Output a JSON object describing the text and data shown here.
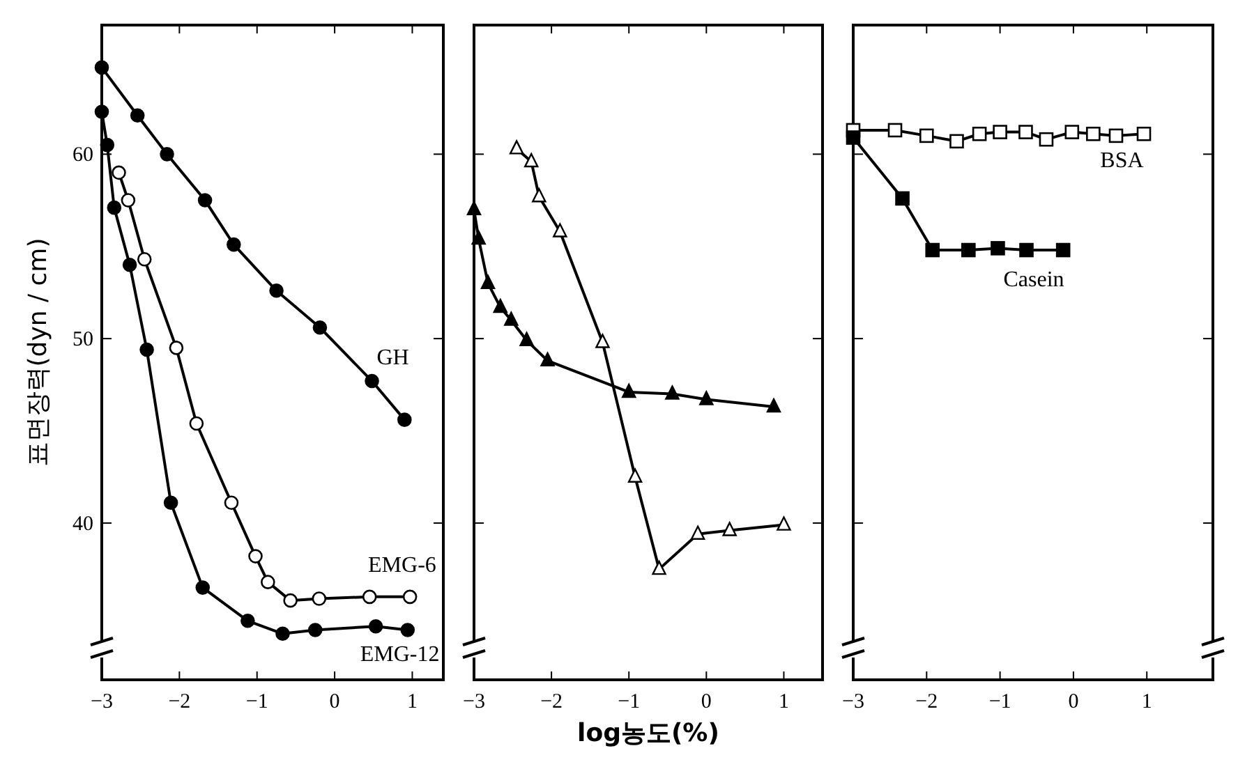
{
  "chart_data": [
    {
      "type": "line",
      "ylabel": "표면장력(dyn / cm)",
      "xlim": [
        -3,
        1.4
      ],
      "xticks": [
        -3,
        -2,
        -1,
        0,
        1
      ],
      "ylim": [
        31.5,
        67
      ],
      "yticks": [
        40,
        50,
        60
      ],
      "tick_labels": "xy",
      "grid": false,
      "series": [
        {
          "name": "GH",
          "color": "#000000",
          "marker": "circle",
          "x": [
            -3.0,
            -2.54,
            -2.16,
            -1.67,
            -1.3,
            -0.75,
            -0.19,
            0.48,
            0.9
          ],
          "values": [
            64.7,
            62.1,
            60.0,
            57.5,
            55.1,
            52.6,
            50.6,
            47.7,
            45.6
          ]
        },
        {
          "name": "EMG-6",
          "color": "#000000",
          "marker": "circle",
          "x": [
            -2.78,
            -2.66,
            -2.45,
            -2.04,
            -1.78,
            -1.33,
            -1.02,
            -0.86,
            -0.57,
            -0.2,
            0.45,
            0.97
          ],
          "values": [
            59.0,
            57.5,
            54.3,
            49.5,
            45.4,
            41.1,
            38.2,
            36.8,
            35.8,
            35.9,
            36.0,
            36.0
          ]
        },
        {
          "name": "EMG-12",
          "color": "#000000",
          "marker": "circle",
          "x": [
            -3.0,
            -2.93,
            -2.84,
            -2.64,
            -2.42,
            -2.11,
            -1.7,
            -1.12,
            -0.67,
            -0.25,
            0.53,
            0.94
          ],
          "values": [
            62.3,
            60.5,
            57.1,
            54.0,
            49.4,
            41.1,
            36.5,
            34.7,
            34.0,
            34.2,
            34.4,
            34.2
          ]
        }
      ]
    },
    {
      "type": "line",
      "xlabel": "log농도(%)",
      "xlim": [
        -3,
        1.5
      ],
      "xticks": [
        -3,
        -2,
        -1,
        0,
        1
      ],
      "ylim": [
        31.5,
        67
      ],
      "yticks": [
        40,
        50,
        60
      ],
      "tick_labels": "x",
      "grid": false,
      "series": [
        {
          "color": "#000000",
          "marker": "triangle",
          "x": [
            -3.0,
            -2.94,
            -2.82,
            -2.66,
            -2.52,
            -2.32,
            -2.05,
            -1.0,
            -0.44,
            0.0,
            0.87
          ],
          "values": [
            57.0,
            55.4,
            53.0,
            51.7,
            51.0,
            49.9,
            48.8,
            47.1,
            47.0,
            46.7,
            46.3
          ]
        },
        {
          "color": "#000000",
          "marker": "triangle",
          "x": [
            -2.45,
            -2.26,
            -2.16,
            -1.89,
            -1.34,
            -0.92,
            -0.61,
            -0.11,
            0.3,
            1.0
          ],
          "values": [
            60.3,
            59.6,
            57.7,
            55.8,
            49.8,
            42.5,
            37.5,
            39.4,
            39.6,
            39.9
          ]
        }
      ]
    },
    {
      "type": "line",
      "xlim": [
        -3,
        1.9
      ],
      "xticks": [
        -3,
        -2,
        -1,
        0,
        1
      ],
      "ylim": [
        31.5,
        67
      ],
      "yticks": [
        40,
        50,
        60
      ],
      "tick_labels": "x",
      "grid": false,
      "series": [
        {
          "name": "BSA",
          "color": "#000000",
          "marker": "square",
          "x": [
            -3.0,
            -2.43,
            -2.0,
            -1.59,
            -1.28,
            -1.0,
            -0.65,
            -0.37,
            -0.02,
            0.27,
            0.58,
            0.96
          ],
          "values": [
            61.3,
            61.3,
            61.0,
            60.7,
            61.1,
            61.2,
            61.2,
            60.8,
            61.2,
            61.1,
            61.0,
            61.1
          ]
        },
        {
          "name": "Casein",
          "color": "#000000",
          "marker": "square",
          "x": [
            -3.0,
            -2.33,
            -1.92,
            -1.43,
            -1.03,
            -0.64,
            -0.14
          ],
          "values": [
            60.9,
            57.6,
            54.8,
            54.8,
            54.9,
            54.8,
            54.8
          ]
        }
      ]
    }
  ]
}
